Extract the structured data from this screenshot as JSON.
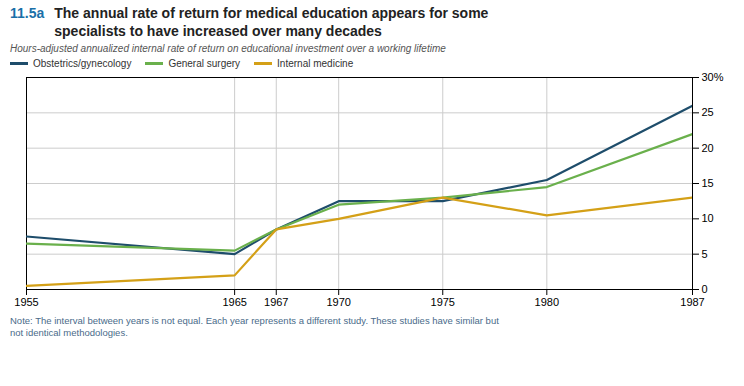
{
  "chart_data": {
    "type": "line",
    "title_number": "11.5a",
    "title": "The annual rate of return for medical education appears for some\nspecialists to have increased over many decades",
    "subtitle": "Hours-adjusted annualized internal rate of return on educational investment over a working lifetime",
    "note": "Note: The interval between years is not equal. Each year represents a different study. These studies have similar but\nnot identical methodologies.",
    "x": [
      1955,
      1965,
      1967,
      1970,
      1975,
      1980,
      1987
    ],
    "series": [
      {
        "name": "Obstetrics/gynecology",
        "color": "#1e4d6b",
        "values": [
          7.5,
          5.0,
          8.5,
          12.5,
          12.5,
          15.5,
          26.0
        ]
      },
      {
        "name": "General surgery",
        "color": "#6ab04c",
        "values": [
          6.5,
          5.5,
          8.5,
          12.0,
          13.0,
          14.5,
          22.0
        ]
      },
      {
        "name": "Internal medicine",
        "color": "#d4a017",
        "values": [
          0.5,
          2.0,
          8.5,
          10.0,
          13.0,
          10.5,
          13.0
        ]
      }
    ],
    "xlim": [
      1955,
      1987
    ],
    "xticks": [
      1955,
      1965,
      1967,
      1970,
      1975,
      1980,
      1987
    ],
    "ylim": [
      0,
      30
    ],
    "yticks": [
      0,
      5,
      10,
      15,
      20,
      25,
      {
        "value": 30,
        "label": "30%"
      }
    ],
    "grid": true,
    "legend": "upper left"
  }
}
